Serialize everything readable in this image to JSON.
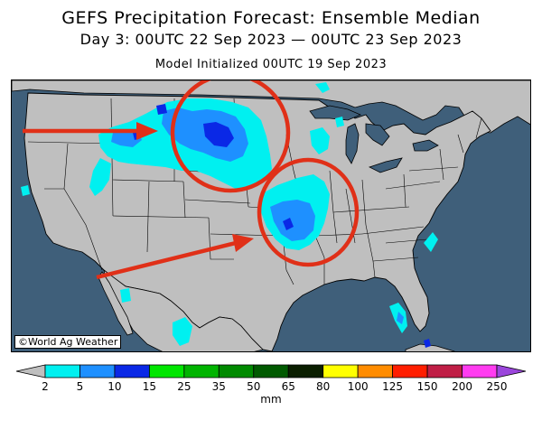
{
  "header": {
    "title": "GEFS Precipitation Forecast: Ensemble Median",
    "period": "Day 3: 00UTC 22 Sep 2023 — 00UTC 23 Sep 2023",
    "initialized": "Model Initialized 00UTC 19 Sep 2023"
  },
  "map": {
    "credit": "©World Ag Weather",
    "colors": {
      "ocean": "#3f5f7a",
      "land": "#bfbfbf",
      "border": "#000000",
      "annotation": "#e03018"
    }
  },
  "legend": {
    "unit": "mm",
    "labels": [
      "2",
      "5",
      "10",
      "15",
      "25",
      "35",
      "50",
      "65",
      "80",
      "100",
      "125",
      "150",
      "200",
      "250"
    ],
    "colors": [
      "#00f0f0",
      "#1e90ff",
      "#0a28e6",
      "#00e600",
      "#00b400",
      "#008a00",
      "#005a00",
      "#0a1e00",
      "#ffff00",
      "#ff8c00",
      "#ff1e00",
      "#c01e46",
      "#ff3cf0",
      "#9b46dc"
    ],
    "under_color": "#bfbfbf",
    "over_color": "#ffffff"
  }
}
